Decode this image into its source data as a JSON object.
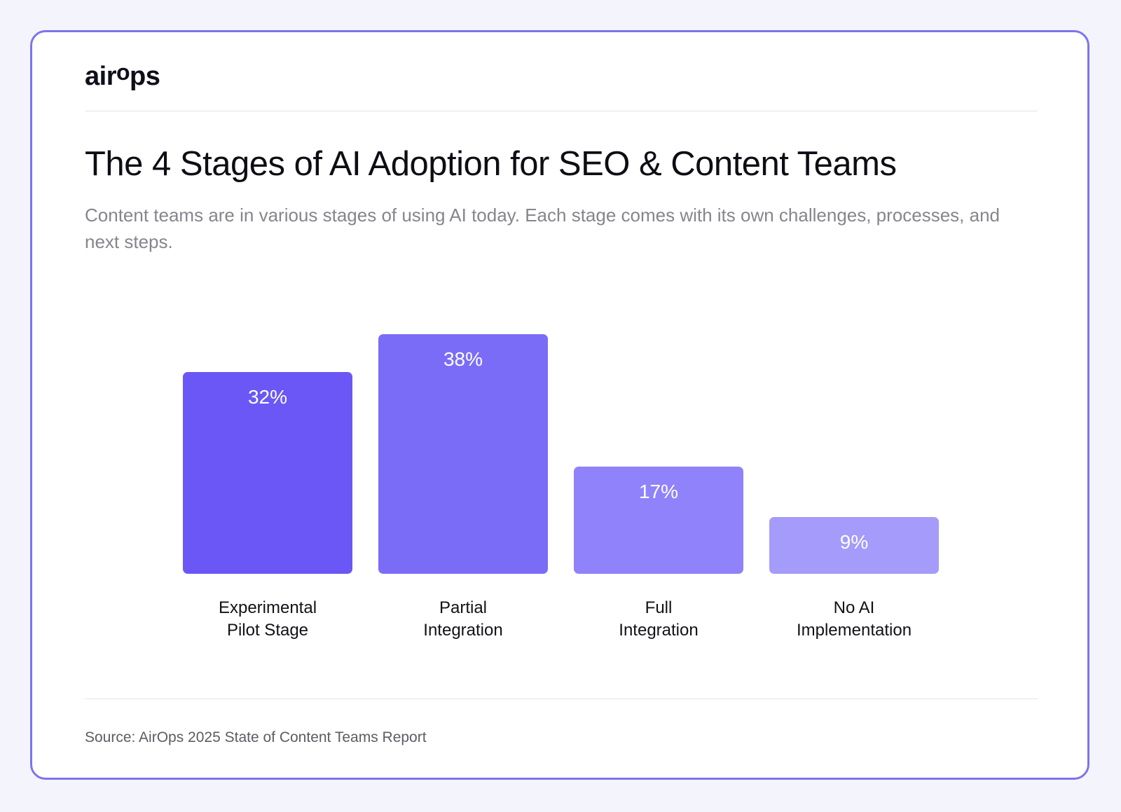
{
  "brand": {
    "logo_parts": [
      "air",
      "o",
      "ps"
    ]
  },
  "header": {
    "title": "The 4 Stages of AI Adoption for SEO & Content Teams",
    "subtitle": "Content teams are in various stages of using AI today. Each stage comes with its own challenges, processes, and next steps."
  },
  "chart_data": {
    "type": "bar",
    "categories": [
      [
        "Experimental",
        "Pilot Stage"
      ],
      [
        "Partial",
        "Integration"
      ],
      [
        "Full",
        "Integration"
      ],
      [
        "No AI",
        "Implementation"
      ]
    ],
    "values": [
      32,
      38,
      17,
      9
    ],
    "value_labels": [
      "32%",
      "38%",
      "17%",
      "9%"
    ],
    "unit": "%",
    "colors": [
      "#6a57f5",
      "#7b6cf8",
      "#9082fa",
      "#a49bfa"
    ],
    "grid": false,
    "legend": "none"
  },
  "footer": {
    "source": "Source: AirOps 2025 State of Content Teams Report"
  }
}
